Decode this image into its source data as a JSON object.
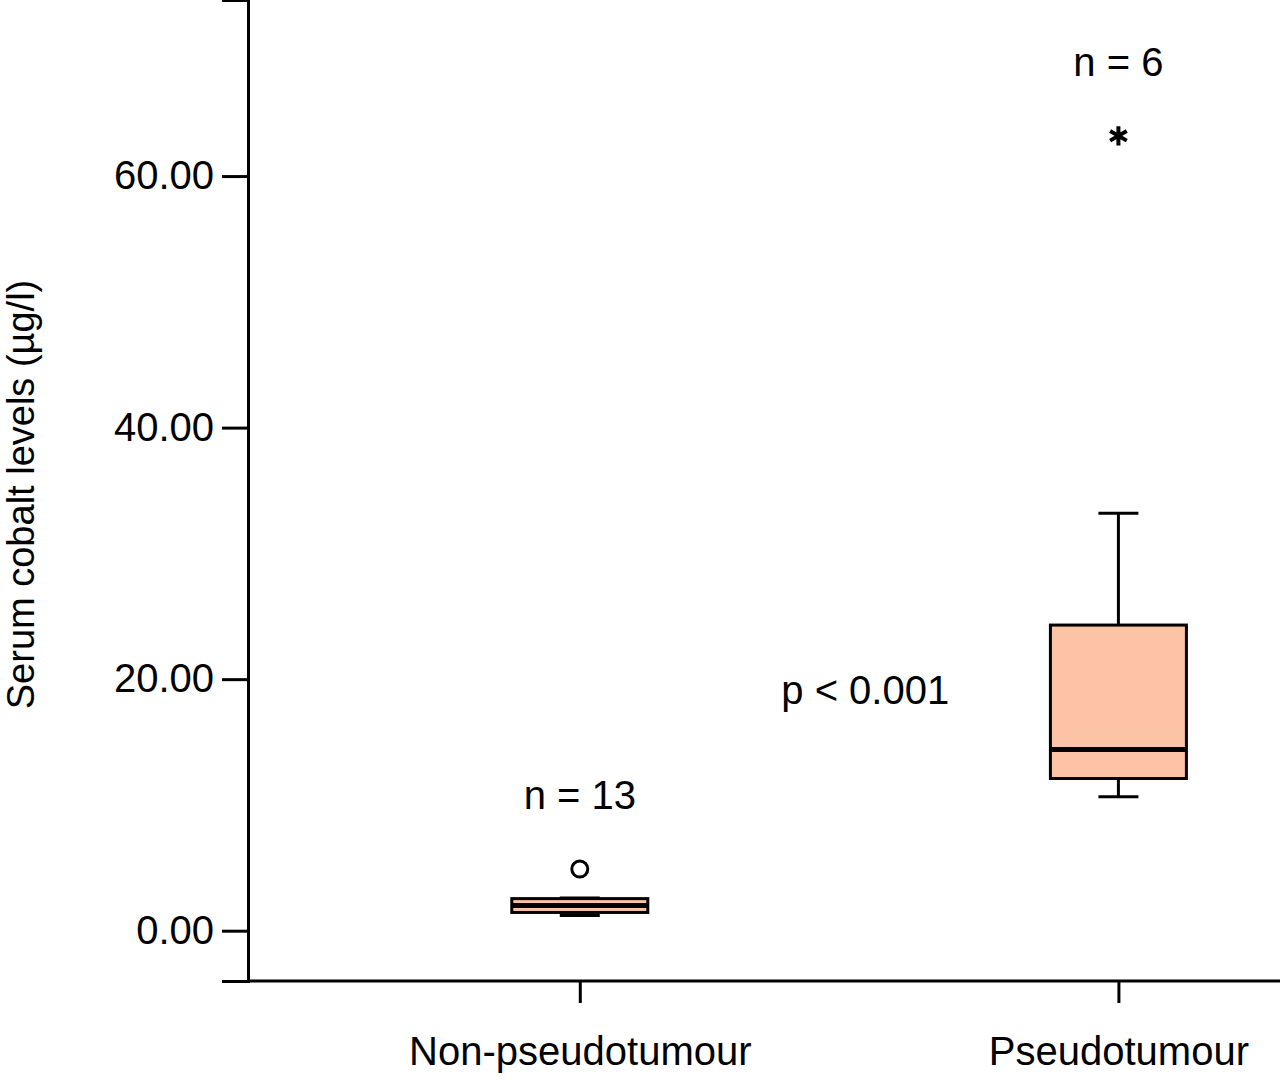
{
  "chart_data": {
    "type": "box",
    "y_label": "Serum cobalt levels (µg/l)",
    "categories": [
      "Non-pseudotumour",
      "Pseudotumour"
    ],
    "color": "#fdc3a6",
    "ylim": [
      -4,
      74
    ],
    "yticks": [
      {
        "value": 0,
        "label": "0.00"
      },
      {
        "value": 20,
        "label": "20.00"
      },
      {
        "value": 40,
        "label": "40.00"
      },
      {
        "value": 60,
        "label": "60.00"
      }
    ],
    "grid": false,
    "boxes": [
      {
        "min": 1.2,
        "q1": 1.45,
        "median": 2.0,
        "q3": 2.55,
        "max": 2.6,
        "outliers": [
          4.9
        ],
        "extremes": []
      },
      {
        "min": 10.65,
        "q1": 12.1,
        "median": 14.4,
        "q3": 24.3,
        "max": 33.2,
        "outliers": [],
        "extremes": [
          63.2
        ]
      }
    ],
    "n_labels": [
      "n = 13",
      "n = 6"
    ],
    "annotation": "p < 0.001"
  }
}
